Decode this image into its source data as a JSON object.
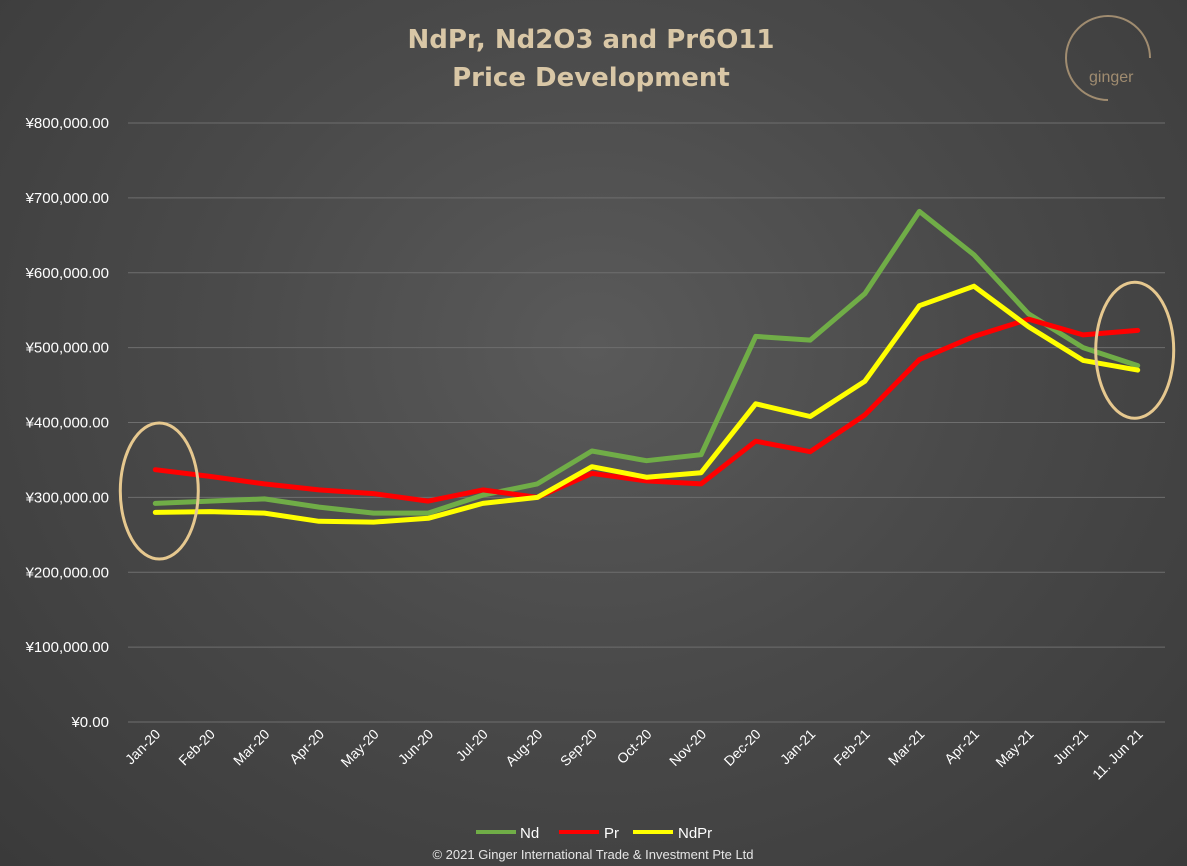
{
  "logo_text": "ginger",
  "copyright": "© 2021 Ginger International Trade & Investment Pte Ltd",
  "chart_data": {
    "type": "line",
    "title": [
      "NdPr, Nd2O3 and Pr6O11",
      "Price Development"
    ],
    "categories": [
      "Jan-20",
      "Feb-20",
      "Mar-20",
      "Apr-20",
      "May-20",
      "Jun-20",
      "Jul-20",
      "Aug-20",
      "Sep-20",
      "Oct-20",
      "Nov-20",
      "Dec-20",
      "Jan-21",
      "Feb-21",
      "Mar-21",
      "Apr-21",
      "May-21",
      "Jun-21",
      "11. Jun 21"
    ],
    "ylim": [
      0,
      800000
    ],
    "yticks": [
      0,
      100000,
      200000,
      300000,
      400000,
      500000,
      600000,
      700000,
      800000
    ],
    "ytick_labels": [
      "¥0.00",
      "¥100,000.00",
      "¥200,000.00",
      "¥300,000.00",
      "¥400,000.00",
      "¥500,000.00",
      "¥600,000.00",
      "¥700,000.00",
      "¥800,000.00"
    ],
    "grid": true,
    "legend_position": "bottom",
    "series": [
      {
        "name": "Nd",
        "color": "#70ad47",
        "values": [
          292000,
          295000,
          298000,
          287000,
          279000,
          279000,
          303000,
          318000,
          362000,
          349000,
          357000,
          515000,
          510000,
          572000,
          682000,
          624000,
          545000,
          500000,
          476000
        ]
      },
      {
        "name": "Pr",
        "color": "#ff0000",
        "values": [
          337000,
          328000,
          318000,
          310000,
          305000,
          295000,
          310000,
          300000,
          332000,
          322000,
          318000,
          375000,
          361000,
          410000,
          484000,
          515000,
          538000,
          517000,
          523000
        ]
      },
      {
        "name": "NdPr",
        "color": "#ffff00",
        "values": [
          280000,
          281000,
          279000,
          268000,
          267000,
          272000,
          292000,
          300000,
          341000,
          327000,
          333000,
          425000,
          408000,
          455000,
          556000,
          582000,
          528000,
          483000,
          470000
        ]
      }
    ],
    "annotations": [
      {
        "type": "ellipse-highlight",
        "category": "Jan-20",
        "color": "#e6c88f"
      },
      {
        "type": "ellipse-highlight",
        "category": "11. Jun 21",
        "color": "#e6c88f"
      }
    ]
  }
}
